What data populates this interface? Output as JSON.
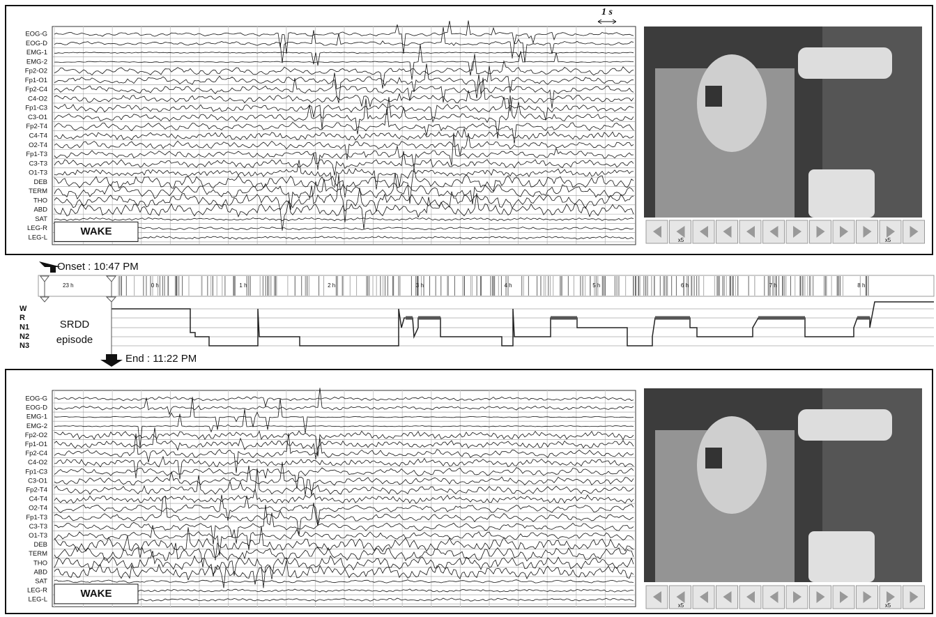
{
  "panels": [
    {
      "channels": [
        "EOG-G",
        "EOG-D",
        "EMG-1",
        "EMG-2",
        "Fp2-O2",
        "Fp1-O1",
        "Fp2-C4",
        "C4-O2",
        "Fp1-C3",
        "C3-O1",
        "Fp2-T4",
        "C4-T4",
        "O2-T4",
        "Fp1-T3",
        "C3-T3",
        "O1-T3",
        "DEB",
        "TERM",
        "THO",
        "ABD",
        "SAT",
        "LEG-R",
        "LEG-L"
      ],
      "stage_label": "WAKE",
      "scale_label": "1 s",
      "speed_labels": [
        "x5",
        "x5"
      ]
    },
    {
      "channels": [
        "EOG-G",
        "EOG-D",
        "EMG-1",
        "EMG-2",
        "Fp2-O2",
        "Fp1-O1",
        "Fp2-C4",
        "C4-O2",
        "Fp1-C3",
        "C3-O1",
        "Fp2-T4",
        "C4-T4",
        "O2-T4",
        "Fp1-T3",
        "C3-T3",
        "O1-T3",
        "DEB",
        "TERM",
        "THO",
        "ABD",
        "SAT",
        "LEG-R",
        "LEG-L"
      ],
      "stage_label": "WAKE",
      "speed_labels": [
        "x5",
        "x5"
      ]
    }
  ],
  "timeline": {
    "onset": "Onset : 10:47 PM",
    "end": "End : 11:22 PM",
    "hours": [
      "23 h",
      "0 h",
      "1 h",
      "2 h",
      "3 h",
      "4 h",
      "5 h",
      "6 h",
      "7 h",
      "8 h"
    ],
    "stages": [
      "W",
      "R",
      "N1",
      "N2",
      "N3"
    ],
    "episode_label": [
      "SRDD",
      "episode"
    ]
  }
}
